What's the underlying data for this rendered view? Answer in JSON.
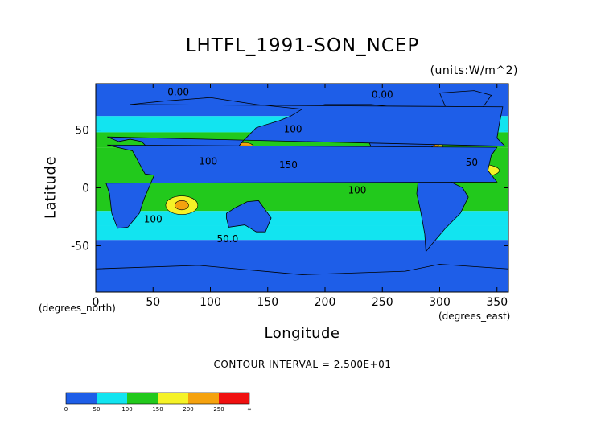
{
  "chart_data": {
    "type": "heatmap",
    "title": "LHTFL_1991-SON_NCEP",
    "units_label": "(units:W/m^2)",
    "xlabel": "Longitude",
    "ylabel": "Latitude",
    "x_units_label": "(degrees_east)",
    "y_units_label": "(degrees_north)",
    "xlim": [
      0,
      360
    ],
    "ylim": [
      -90,
      90
    ],
    "x_ticks": [
      0,
      50,
      100,
      150,
      200,
      250,
      300,
      350
    ],
    "y_ticks": [
      -50,
      0,
      50
    ],
    "contour_interval_label": "CONTOUR INTERVAL = 2.500E+01",
    "colorbar": {
      "bins": [
        {
          "from": 0,
          "to": 50,
          "color": "#1e5ee8"
        },
        {
          "from": 50,
          "to": 100,
          "color": "#12e4f0"
        },
        {
          "from": 100,
          "to": 150,
          "color": "#22c91c"
        },
        {
          "from": 150,
          "to": 200,
          "color": "#f5f227"
        },
        {
          "from": 200,
          "to": 250,
          "color": "#f5a20e"
        },
        {
          "from": 250,
          "to": "inf",
          "color": "#f01010"
        }
      ],
      "tick_labels": [
        "0",
        "50",
        "100",
        "150",
        "200",
        "250",
        "∞"
      ]
    },
    "contour_labels": [
      {
        "text": "0.00",
        "lon": 72,
        "lat": 80
      },
      {
        "text": "0.00",
        "lon": 250,
        "lat": 78
      },
      {
        "text": "100",
        "lon": 172,
        "lat": 48
      },
      {
        "text": "100",
        "lon": 98,
        "lat": 20
      },
      {
        "text": "150",
        "lon": 168,
        "lat": 17
      },
      {
        "text": "50",
        "lon": 328,
        "lat": 19
      },
      {
        "text": "100",
        "lon": 228,
        "lat": -5
      },
      {
        "text": "100",
        "lon": 50,
        "lat": -30
      },
      {
        "text": "50.0",
        "lon": 115,
        "lat": -47
      }
    ],
    "land_masks": [
      {
        "name": "North America",
        "points": [
          [
            190,
            70
          ],
          [
            200,
            72
          ],
          [
            240,
            72
          ],
          [
            280,
            68
          ],
          [
            300,
            60
          ],
          [
            305,
            48
          ],
          [
            300,
            40
          ],
          [
            285,
            30
          ],
          [
            275,
            25
          ],
          [
            265,
            18
          ],
          [
            257,
            15
          ],
          [
            250,
            22
          ],
          [
            242,
            32
          ],
          [
            237,
            42
          ],
          [
            232,
            55
          ],
          [
            210,
            60
          ]
        ]
      },
      {
        "name": "South America",
        "points": [
          [
            282,
            12
          ],
          [
            300,
            10
          ],
          [
            320,
            0
          ],
          [
            325,
            -8
          ],
          [
            318,
            -22
          ],
          [
            305,
            -35
          ],
          [
            292,
            -50
          ],
          [
            288,
            -55
          ],
          [
            287,
            -40
          ],
          [
            283,
            -18
          ],
          [
            280,
            -5
          ]
        ]
      },
      {
        "name": "Greenland",
        "points": [
          [
            300,
            82
          ],
          [
            330,
            84
          ],
          [
            345,
            80
          ],
          [
            338,
            70
          ],
          [
            320,
            62
          ],
          [
            305,
            70
          ]
        ]
      },
      {
        "name": "Eurasia",
        "points": [
          [
            355,
            70
          ],
          [
            30,
            72
          ],
          [
            60,
            75
          ],
          [
            100,
            78
          ],
          [
            140,
            72
          ],
          [
            180,
            68
          ],
          [
            170,
            62
          ],
          [
            160,
            58
          ],
          [
            140,
            52
          ],
          [
            128,
            40
          ],
          [
            120,
            30
          ],
          [
            110,
            20
          ],
          [
            105,
            10
          ],
          [
            100,
            5
          ],
          [
            95,
            18
          ],
          [
            88,
            22
          ],
          [
            78,
            10
          ],
          [
            72,
            22
          ],
          [
            60,
            25
          ],
          [
            50,
            30
          ],
          [
            40,
            40
          ],
          [
            30,
            42
          ],
          [
            20,
            40
          ],
          [
            10,
            44
          ],
          [
            357,
            36
          ],
          [
            350,
            43
          ],
          [
            352,
            55
          ]
        ]
      },
      {
        "name": "Africa",
        "points": [
          [
            350,
            35
          ],
          [
            10,
            37
          ],
          [
            32,
            32
          ],
          [
            43,
            12
          ],
          [
            51,
            11
          ],
          [
            42,
            -10
          ],
          [
            38,
            -22
          ],
          [
            28,
            -34
          ],
          [
            19,
            -35
          ],
          [
            14,
            -22
          ],
          [
            12,
            -5
          ],
          [
            9,
            4
          ],
          [
            350,
            5
          ],
          [
            342,
            15
          ],
          [
            345,
            28
          ]
        ]
      },
      {
        "name": "Australia",
        "points": [
          [
            114,
            -22
          ],
          [
            122,
            -17
          ],
          [
            132,
            -12
          ],
          [
            142,
            -11
          ],
          [
            153,
            -26
          ],
          [
            148,
            -38
          ],
          [
            140,
            -38
          ],
          [
            130,
            -32
          ],
          [
            116,
            -34
          ],
          [
            114,
            -26
          ]
        ]
      },
      {
        "name": "Antarctica",
        "points": [
          [
            0,
            -70
          ],
          [
            90,
            -67
          ],
          [
            180,
            -75
          ],
          [
            270,
            -72
          ],
          [
            300,
            -66
          ],
          [
            360,
            -70
          ],
          [
            360,
            -90
          ],
          [
            0,
            -90
          ]
        ]
      }
    ],
    "field_blobs": [
      {
        "lon": 140,
        "lat": 25,
        "rx": 35,
        "ry": 10,
        "color": "#f5f227"
      },
      {
        "lon": 285,
        "lat": 35,
        "rx": 18,
        "ry": 7,
        "color": "#f5f227"
      },
      {
        "lon": 75,
        "lat": -15,
        "rx": 14,
        "ry": 8,
        "color": "#f5f227"
      },
      {
        "lon": 330,
        "lat": 15,
        "rx": 22,
        "ry": 6,
        "color": "#f5f227"
      },
      {
        "lon": 190,
        "lat": 15,
        "rx": 25,
        "ry": 6,
        "color": "#f5f227"
      },
      {
        "lon": 130,
        "lat": 35,
        "rx": 8,
        "ry": 4,
        "color": "#f5a20e"
      },
      {
        "lon": 290,
        "lat": 37,
        "rx": 9,
        "ry": 4,
        "color": "#f5a20e"
      },
      {
        "lon": 75,
        "lat": -15,
        "rx": 6,
        "ry": 4,
        "color": "#f5a20e"
      },
      {
        "lon": 330,
        "lat": 17,
        "rx": 9,
        "ry": 3,
        "color": "#f5a20e"
      }
    ]
  }
}
